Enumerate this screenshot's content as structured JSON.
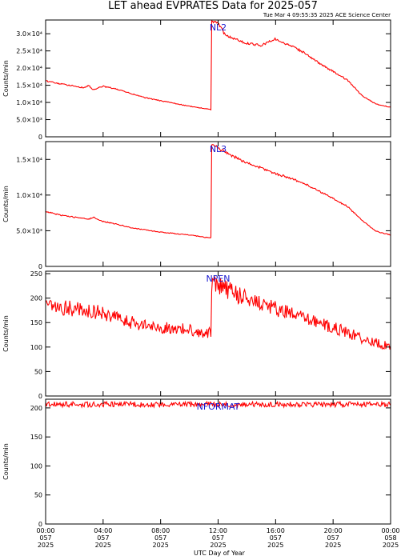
{
  "title": "LET ahead EVPRATES Data for 2025-057",
  "timestamp": "Tue Mar  4 09:55:35 2025 ACE Science Center",
  "xlabel": "UTC Day of Year",
  "line_color": "#ff0000",
  "label_color": "#1a1ad0",
  "chart_data": [
    {
      "type": "line",
      "panel_label": "NL2",
      "ylabel": "Counts/min",
      "ylim": [
        0,
        34000
      ],
      "yticks": [
        0,
        5000,
        10000,
        15000,
        20000,
        25000,
        30000
      ],
      "ytick_labels": [
        "0",
        "5.0×10³",
        "1.0×10⁴",
        "1.5×10⁴",
        "2.0×10⁴",
        "2.5×10⁴",
        "3.0×10⁴"
      ],
      "xlim": [
        0,
        24
      ],
      "noise": 0.012,
      "points": [
        [
          0,
          16300
        ],
        [
          1,
          15400
        ],
        [
          2,
          14800
        ],
        [
          2.6,
          14300
        ],
        [
          3,
          14900
        ],
        [
          3.3,
          13700
        ],
        [
          4,
          14700
        ],
        [
          5,
          13800
        ],
        [
          6,
          12500
        ],
        [
          7,
          11300
        ],
        [
          8,
          10500
        ],
        [
          9,
          9700
        ],
        [
          10,
          8900
        ],
        [
          10.6,
          8500
        ],
        [
          11,
          8300
        ],
        [
          11.5,
          7900
        ],
        [
          11.55,
          33500
        ],
        [
          12,
          33200
        ],
        [
          12.5,
          29500
        ],
        [
          13,
          28800
        ],
        [
          14,
          27200
        ],
        [
          15,
          26600
        ],
        [
          16,
          28500
        ],
        [
          16.5,
          27400
        ],
        [
          17,
          26600
        ],
        [
          18,
          24500
        ],
        [
          19,
          21500
        ],
        [
          20,
          19000
        ],
        [
          21,
          16500
        ],
        [
          22,
          12000
        ],
        [
          23,
          9500
        ],
        [
          24,
          8600
        ]
      ]
    },
    {
      "type": "line",
      "panel_label": "NL3",
      "ylabel": "Counts/min",
      "ylim": [
        0,
        17500
      ],
      "yticks": [
        0,
        5000,
        10000,
        15000
      ],
      "ytick_labels": [
        "0",
        "5.0×10³",
        "1.0×10⁴",
        "1.5×10⁴"
      ],
      "xlim": [
        0,
        24
      ],
      "noise": 0.012,
      "points": [
        [
          0,
          7700
        ],
        [
          1,
          7200
        ],
        [
          2,
          6900
        ],
        [
          3,
          6600
        ],
        [
          3.3,
          6900
        ],
        [
          4,
          6300
        ],
        [
          5,
          5900
        ],
        [
          6,
          5400
        ],
        [
          7,
          5100
        ],
        [
          8,
          4800
        ],
        [
          9,
          4600
        ],
        [
          10,
          4400
        ],
        [
          11,
          4100
        ],
        [
          11.5,
          4000
        ],
        [
          11.55,
          17200
        ],
        [
          12,
          16600
        ],
        [
          13,
          15500
        ],
        [
          14,
          14500
        ],
        [
          15,
          13800
        ],
        [
          16,
          13000
        ],
        [
          17,
          12400
        ],
        [
          18,
          11600
        ],
        [
          19,
          10600
        ],
        [
          20,
          9500
        ],
        [
          21,
          8400
        ],
        [
          22,
          6500
        ],
        [
          23,
          4900
        ],
        [
          24,
          4400
        ]
      ]
    },
    {
      "type": "line",
      "panel_label": "NPEN",
      "ylabel": "Counts/min",
      "ylim": [
        0,
        255
      ],
      "yticks": [
        0,
        50,
        100,
        150,
        200,
        250
      ],
      "ytick_labels": [
        "0",
        "50",
        "100",
        "150",
        "200",
        "250"
      ],
      "xlim": [
        0,
        24
      ],
      "noise": 0.09,
      "points": [
        [
          0,
          185
        ],
        [
          1,
          182
        ],
        [
          2,
          178
        ],
        [
          3,
          175
        ],
        [
          4,
          168
        ],
        [
          5,
          158
        ],
        [
          6,
          150
        ],
        [
          7,
          143
        ],
        [
          8,
          140
        ],
        [
          9,
          138
        ],
        [
          10,
          135
        ],
        [
          11,
          130
        ],
        [
          11.5,
          128
        ],
        [
          11.55,
          235
        ],
        [
          12,
          225
        ],
        [
          13,
          212
        ],
        [
          14,
          200
        ],
        [
          15,
          190
        ],
        [
          16,
          178
        ],
        [
          17,
          168
        ],
        [
          18,
          158
        ],
        [
          19,
          150
        ],
        [
          20,
          140
        ],
        [
          21,
          130
        ],
        [
          22,
          118
        ],
        [
          23,
          108
        ],
        [
          24,
          102
        ]
      ]
    },
    {
      "type": "line",
      "panel_label": "NFORMAT",
      "ylabel": "Counts/min",
      "ylim": [
        0,
        215
      ],
      "yticks": [
        0,
        50,
        100,
        150,
        200
      ],
      "ytick_labels": [
        "0",
        "50",
        "100",
        "150",
        "200"
      ],
      "xlim": [
        0,
        24
      ],
      "noise": 0.022,
      "points": [
        [
          0,
          206
        ],
        [
          24,
          206
        ]
      ]
    }
  ],
  "x_axis": {
    "ticks": [
      0,
      4,
      8,
      12,
      16,
      20,
      24
    ],
    "tick_labels": [
      [
        "00:00",
        "057",
        "2025"
      ],
      [
        "04:00",
        "057",
        "2025"
      ],
      [
        "08:00",
        "057",
        "2025"
      ],
      [
        "12:00",
        "057",
        "2025"
      ],
      [
        "16:00",
        "057",
        "2025"
      ],
      [
        "20:00",
        "057",
        "2025"
      ],
      [
        "00:00",
        "058",
        "2025"
      ]
    ]
  }
}
